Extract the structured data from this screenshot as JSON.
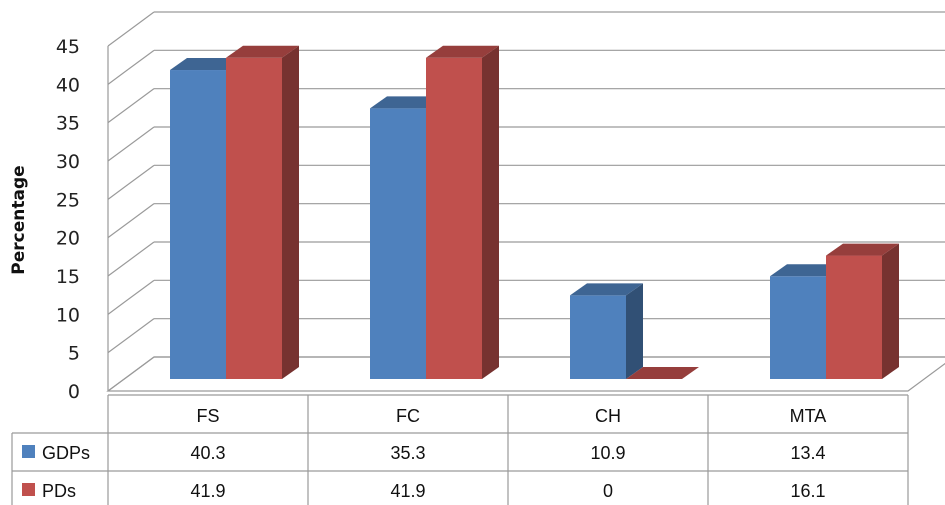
{
  "chart_data": {
    "type": "bar",
    "title": "",
    "xlabel": "",
    "ylabel": "Percentage",
    "ylim": [
      0,
      45
    ],
    "yticks": [
      "0",
      "5",
      "10",
      "15",
      "20",
      "25",
      "30",
      "35",
      "40",
      "45"
    ],
    "categories": [
      "FS",
      "FC",
      "CH",
      "MTA"
    ],
    "grid": true,
    "legend": "table-left",
    "series": [
      {
        "name": "GDPs",
        "color": "#4f81bd",
        "values": [
          40.3,
          35.3,
          10.9,
          13.4
        ],
        "labels": [
          "40.3",
          "35.3",
          "10.9",
          "13.4"
        ]
      },
      {
        "name": "PDs",
        "color": "#c0504d",
        "values": [
          41.9,
          41.9,
          0,
          16.1
        ],
        "labels": [
          "41.9",
          "41.9",
          "0",
          "16.1"
        ]
      }
    ]
  }
}
